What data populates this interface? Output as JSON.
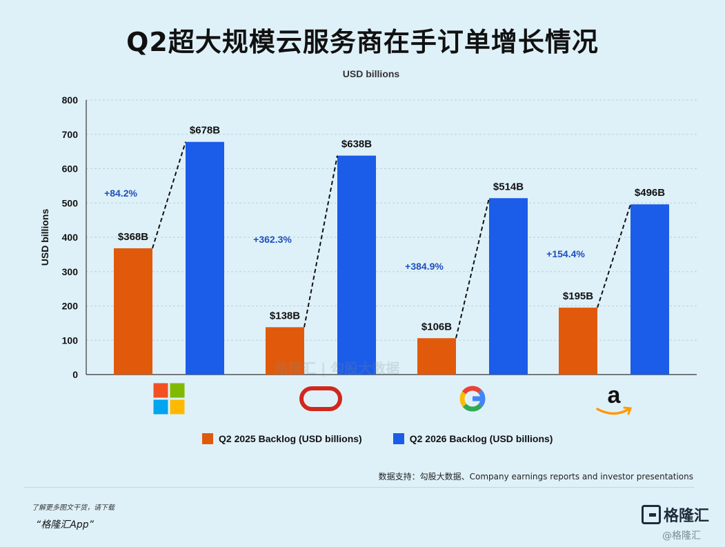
{
  "title": "Q2超大规模云服务商在手订单增长情况",
  "chart_data": {
    "type": "bar",
    "subtitle": "USD billions",
    "ylabel": "USD billions",
    "ylim": [
      0,
      800
    ],
    "yticks": [
      0,
      100,
      200,
      300,
      400,
      500,
      600,
      700,
      800
    ],
    "grid": true,
    "categories": [
      "microsoft-logo",
      "oracle-logo",
      "google-logo",
      "amazon-logo"
    ],
    "series": [
      {
        "name": "Q2 2025 Backlog (USD billions)",
        "color": "#e15a0c",
        "values": [
          368,
          138,
          106,
          195
        ],
        "labels": [
          "$368B",
          "$138B",
          "$106B",
          "$195B"
        ]
      },
      {
        "name": "Q2 2026 Backlog (USD billions)",
        "color": "#1b5ce8",
        "values": [
          678,
          638,
          514,
          496
        ],
        "labels": [
          "$678B",
          "$638B",
          "$514B",
          "$496B"
        ]
      }
    ],
    "growth_labels": [
      "+84.2%",
      "+362.3%",
      "+384.9%",
      "+154.4%"
    ],
    "growth_color": "#1e4fbf",
    "legend_position": "bottom"
  },
  "source": "数据支持：勾股大数据、Company earnings reports and investor presentations",
  "footer": {
    "note": "了解更多图文干货，请下载",
    "app": "“格隆汇App”",
    "logo_text": "格隆汇",
    "watermark": "@格隆汇"
  },
  "center_watermark": "格隆汇 | 勾股大数据"
}
